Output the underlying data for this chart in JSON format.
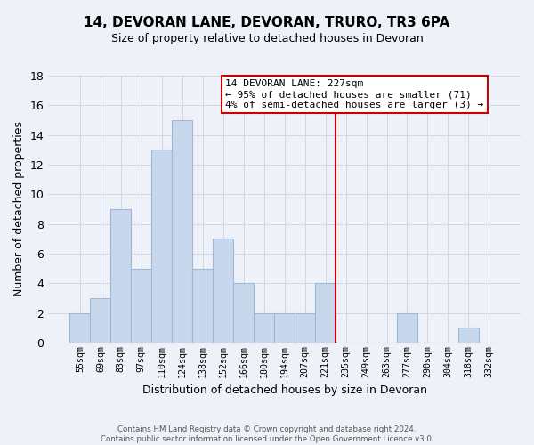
{
  "title": "14, DEVORAN LANE, DEVORAN, TRURO, TR3 6PA",
  "subtitle": "Size of property relative to detached houses in Devoran",
  "xlabel": "Distribution of detached houses by size in Devoran",
  "ylabel": "Number of detached properties",
  "bar_labels": [
    "55sqm",
    "69sqm",
    "83sqm",
    "97sqm",
    "110sqm",
    "124sqm",
    "138sqm",
    "152sqm",
    "166sqm",
    "180sqm",
    "194sqm",
    "207sqm",
    "221sqm",
    "235sqm",
    "249sqm",
    "263sqm",
    "277sqm",
    "290sqm",
    "304sqm",
    "318sqm",
    "332sqm"
  ],
  "bar_values": [
    2,
    3,
    9,
    5,
    13,
    15,
    5,
    7,
    4,
    2,
    2,
    2,
    4,
    0,
    0,
    0,
    2,
    0,
    0,
    1,
    0
  ],
  "bar_color": "#c8d8ec",
  "bar_edge_color": "#a0b8d8",
  "grid_color": "#d0d8e8",
  "background_color": "#eef2f8",
  "vline_x": 13.0,
  "vline_color": "#cc0000",
  "annotation_title": "14 DEVORAN LANE: 227sqm",
  "annotation_line1": "← 95% of detached houses are smaller (71)",
  "annotation_line2": "4% of semi-detached houses are larger (3) →",
  "annotation_box_color": "#ffffff",
  "annotation_box_edge": "#cc0000",
  "footer_line1": "Contains HM Land Registry data © Crown copyright and database right 2024.",
  "footer_line2": "Contains public sector information licensed under the Open Government Licence v3.0.",
  "ylim": [
    0,
    18
  ],
  "yticks": [
    0,
    2,
    4,
    6,
    8,
    10,
    12,
    14,
    16,
    18
  ]
}
